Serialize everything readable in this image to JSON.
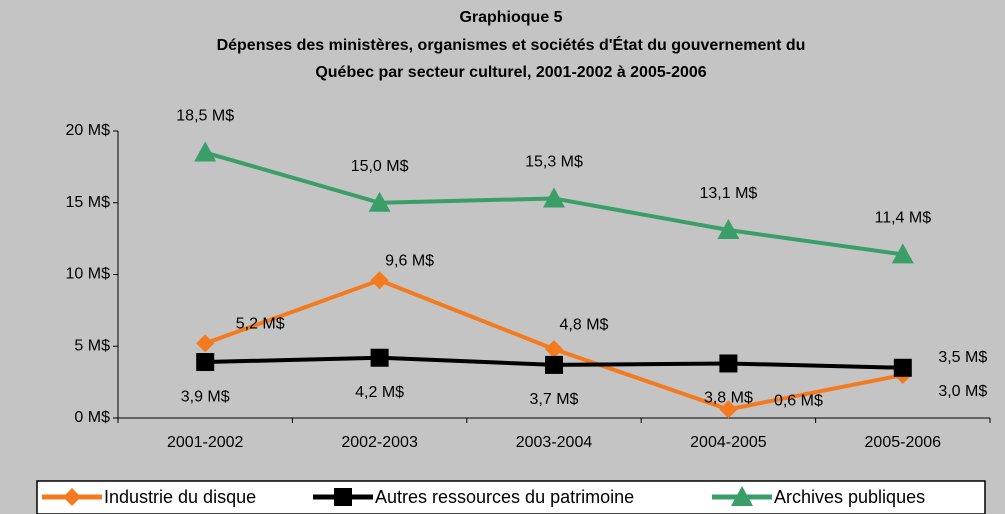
{
  "chart_data": {
    "type": "line",
    "title": [
      "Graphioque 5",
      "Dépenses des ministères, organismes et sociétés d'État du gouvernement du",
      "Québec par secteur culturel, 2001-2002 à 2005-2006"
    ],
    "categories": [
      "2001-2002",
      "2002-2003",
      "2003-2004",
      "2004-2005",
      "2005-2006"
    ],
    "series": [
      {
        "name": "Industrie du disque",
        "color": "#f47a20",
        "marker": "diamond",
        "values": [
          5.2,
          9.6,
          4.8,
          0.6,
          3.0
        ],
        "value_labels": [
          "5,2 M$",
          "9,6 M$",
          "4,8 M$",
          "0,6 M$",
          "3,0 M$"
        ]
      },
      {
        "name": "Autres ressources du patrimoine",
        "color": "#000000",
        "marker": "square",
        "values": [
          3.9,
          4.2,
          3.7,
          3.8,
          3.5
        ],
        "value_labels": [
          "3,9 M$",
          "4,2 M$",
          "3,7 M$",
          "3,8 M$",
          "3,5 M$"
        ]
      },
      {
        "name": "Archives publiques",
        "color": "#3a9e68",
        "marker": "triangle",
        "values": [
          18.5,
          15.0,
          15.3,
          13.1,
          11.4
        ],
        "value_labels": [
          "18,5 M$",
          "15,0 M$",
          "15,3 M$",
          "13,1 M$",
          "11,4 M$"
        ]
      }
    ],
    "ylim": [
      0,
      20
    ],
    "yticks": [
      {
        "value": 0,
        "label": "0 M$"
      },
      {
        "value": 5,
        "label": "5 M$"
      },
      {
        "value": 10,
        "label": "10 M$"
      },
      {
        "value": 15,
        "label": "15 M$"
      },
      {
        "value": 20,
        "label": "20 M$"
      }
    ],
    "grid": false,
    "legend": "bottom"
  }
}
